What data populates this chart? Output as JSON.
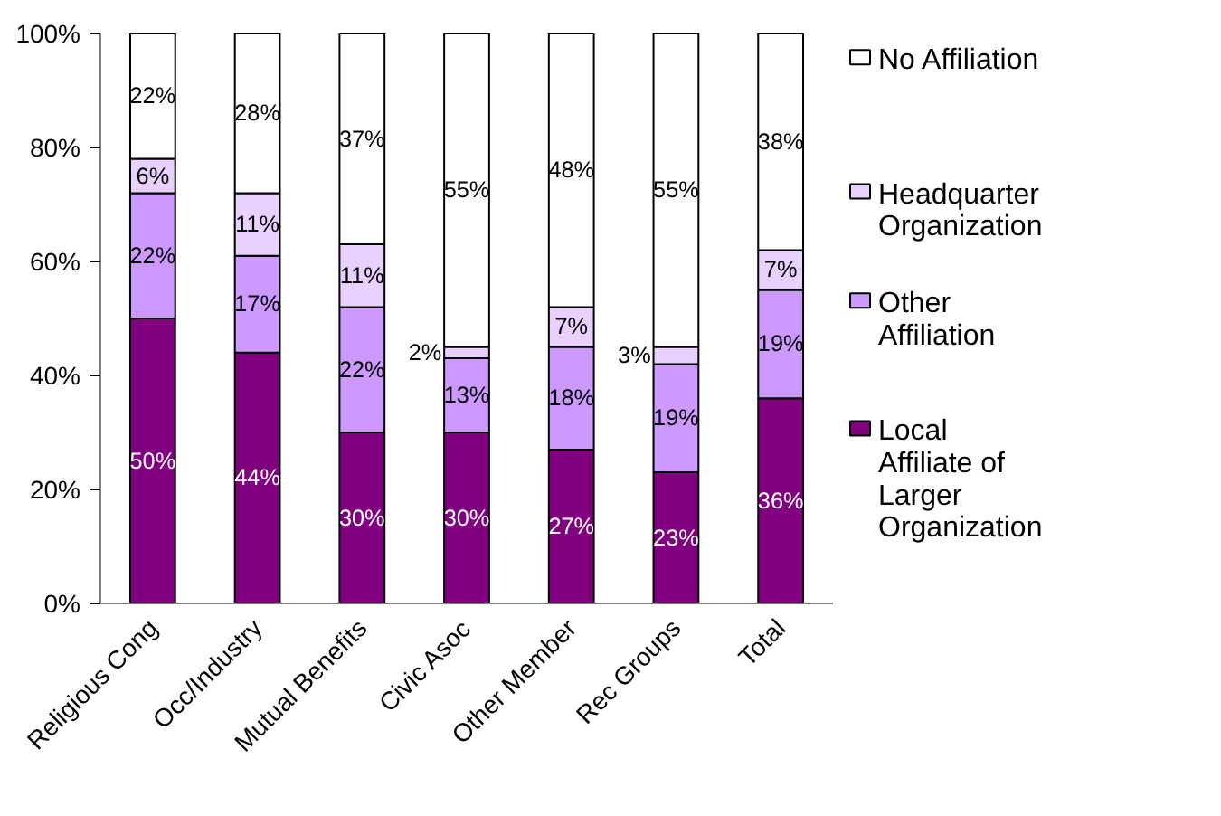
{
  "chart_data": {
    "type": "bar",
    "stacked": true,
    "data_labels": true,
    "legend": "right",
    "grid": false,
    "categories": [
      "Religious Cong",
      "Occ/Industry",
      "Mutual Benefits",
      "Civic Asoc",
      "Other Member",
      "Rec Groups",
      "Total"
    ],
    "ylim": [
      0,
      100
    ],
    "yticks": [
      {
        "value": 0,
        "label": "0%"
      },
      {
        "value": 20,
        "label": "20%"
      },
      {
        "value": 40,
        "label": "40%"
      },
      {
        "value": 60,
        "label": "60%"
      },
      {
        "value": 80,
        "label": "80%"
      },
      {
        "value": 100,
        "label": "100%"
      }
    ],
    "series": [
      {
        "name": "Local Affiliate of Larger Organization",
        "color": "#800080",
        "values": [
          50,
          44,
          30,
          30,
          27,
          23,
          36
        ],
        "value_labels": [
          "50%",
          "44%",
          "30%",
          "30%",
          "27%",
          "23%",
          "36%"
        ]
      },
      {
        "name": "Other Affiliation",
        "color": "#cc99ff",
        "values": [
          22,
          17,
          22,
          13,
          18,
          19,
          19
        ],
        "value_labels": [
          "22%",
          "17%",
          "22%",
          "13%",
          "18%",
          "19%",
          "19%"
        ]
      },
      {
        "name": "Headquarter Organization",
        "color": "#e8d0ff",
        "values": [
          6,
          11,
          11,
          2,
          7,
          3,
          7
        ],
        "value_labels": [
          "6%",
          "11%",
          "11%",
          "2%",
          "7%",
          "3%",
          "7%"
        ]
      },
      {
        "name": "No Affiliation",
        "color": "#ffffff",
        "values": [
          22,
          28,
          37,
          55,
          48,
          55,
          38
        ],
        "value_labels": [
          "22%",
          "28%",
          "37%",
          "55%",
          "48%",
          "55%",
          "38%"
        ]
      }
    ]
  }
}
